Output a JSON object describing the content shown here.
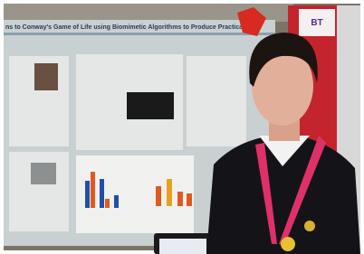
{
  "poster": {
    "title": "ns to Conway's Game of Life using Biomimetic Algorithms to Produce Practica"
  },
  "banner": {
    "logo": "BT"
  }
}
